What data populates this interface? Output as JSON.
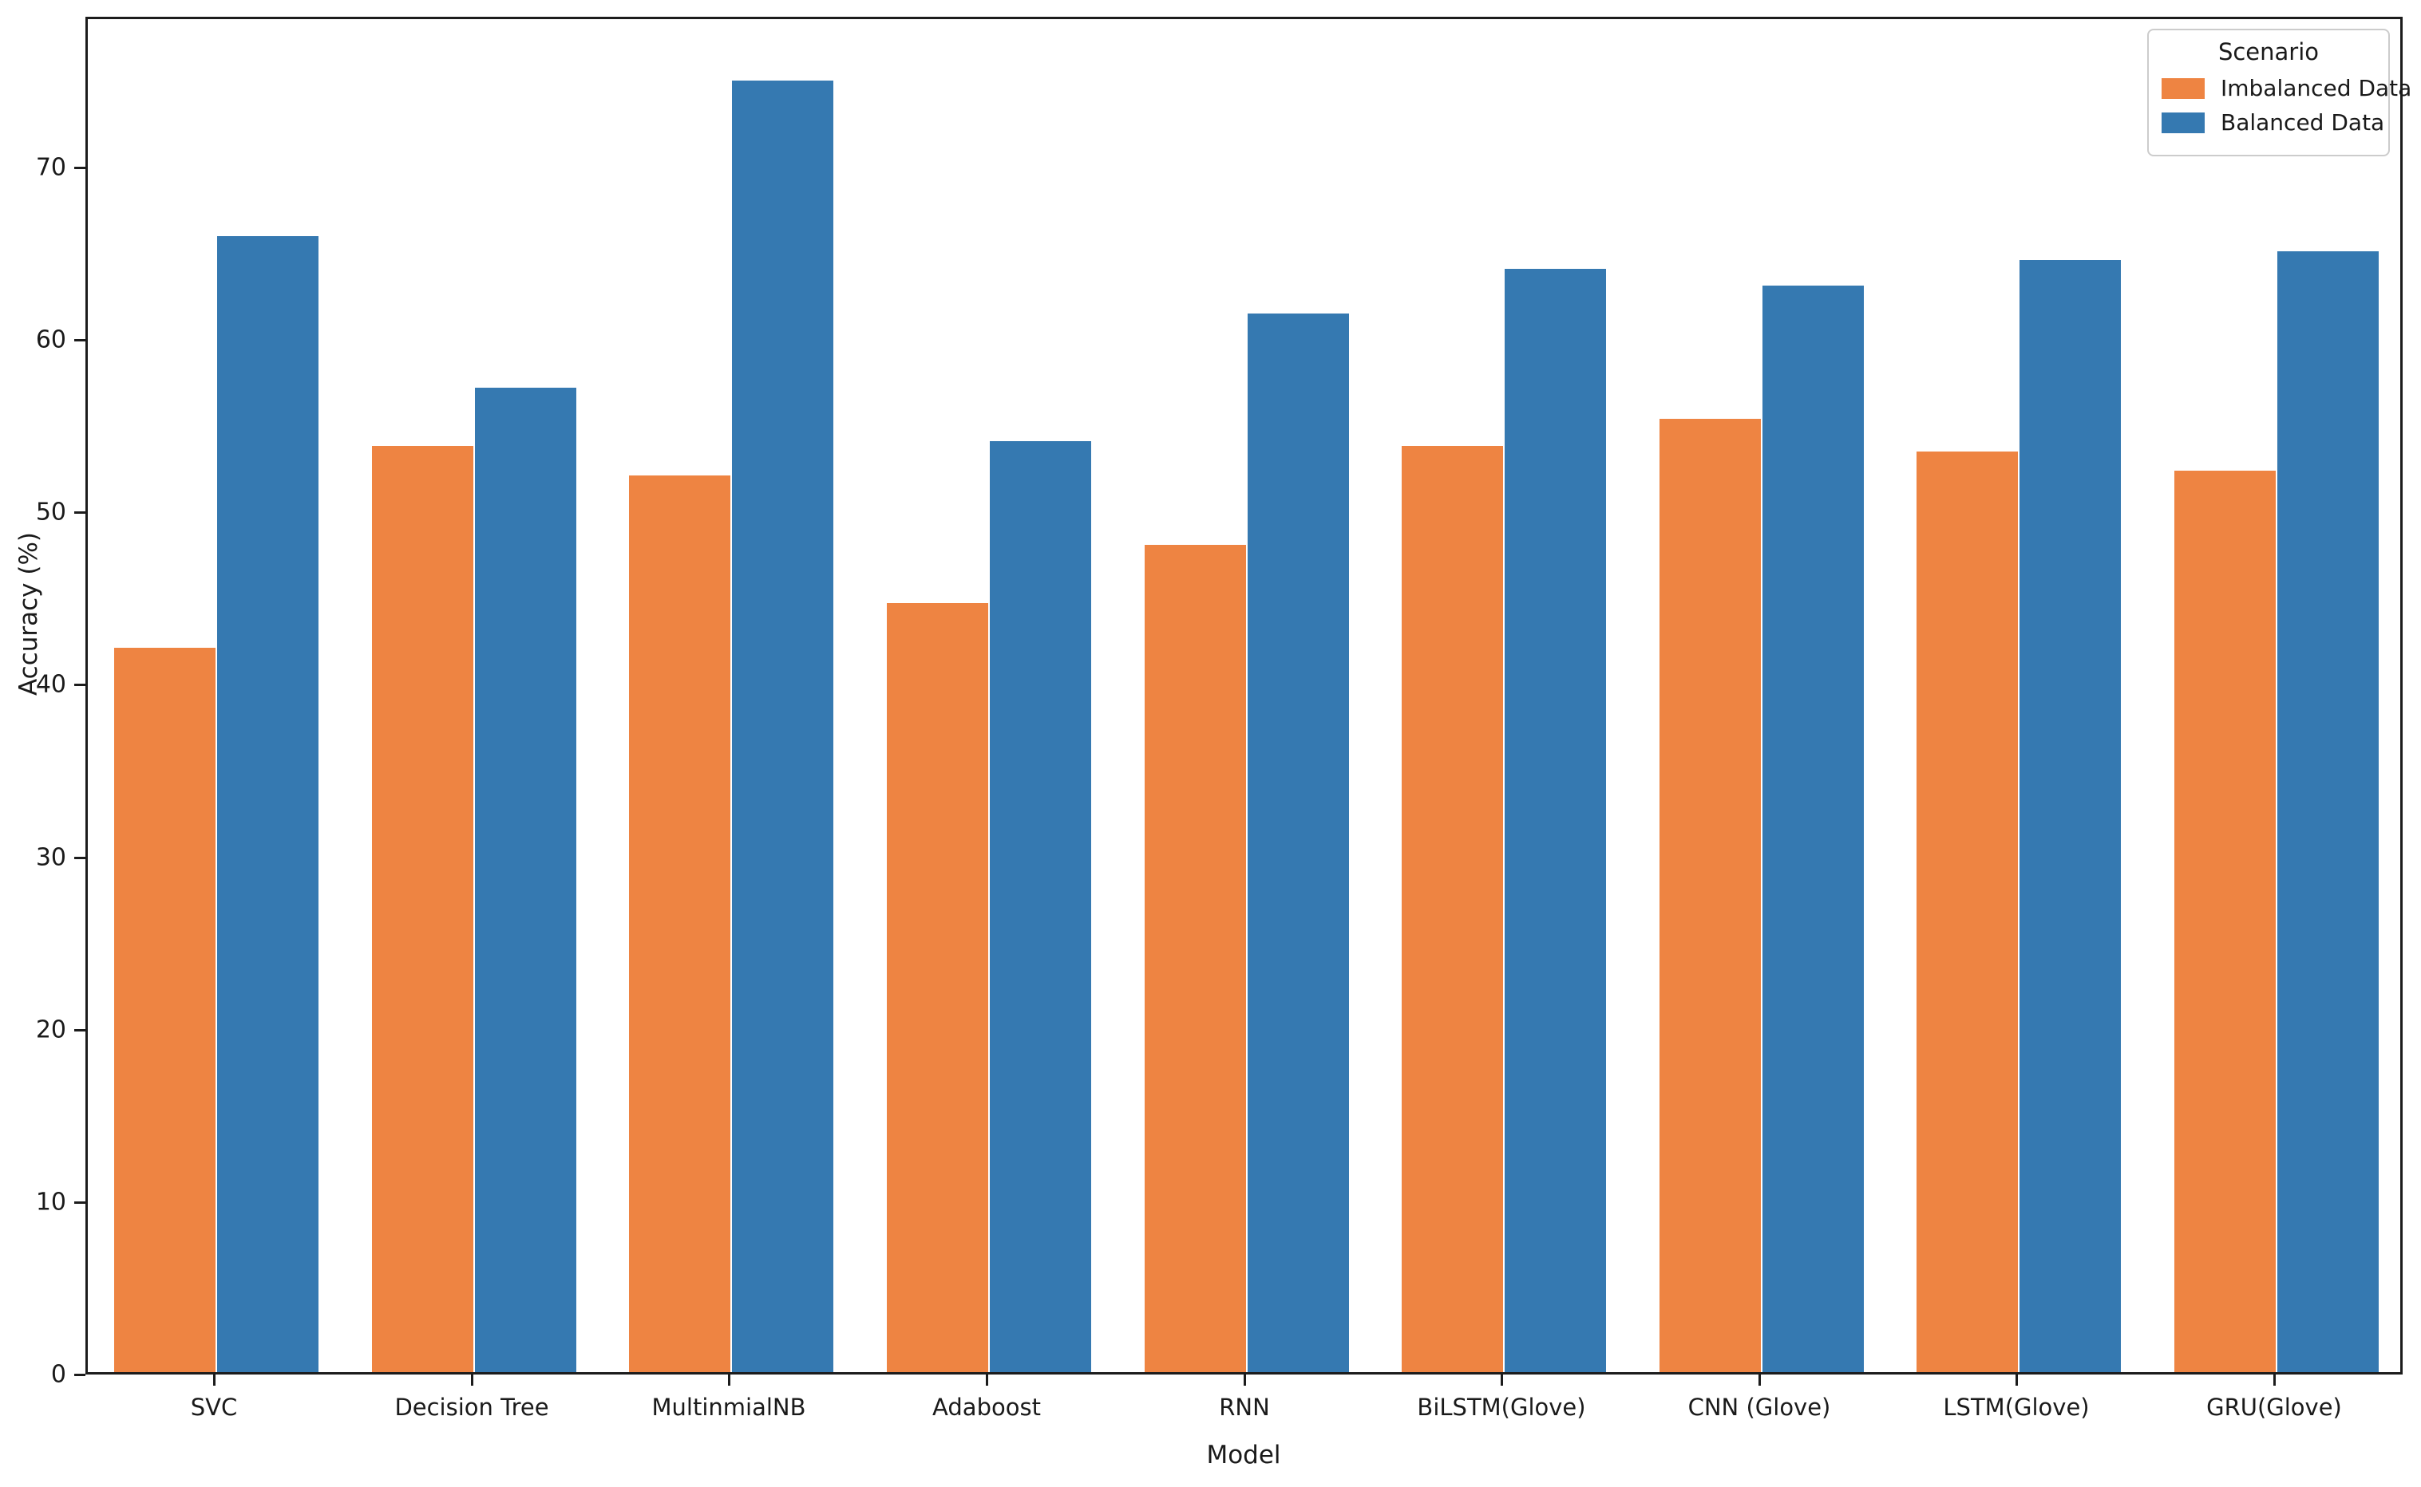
{
  "figure": {
    "background": "#ffffff",
    "spine_color": "#1c1c1c"
  },
  "axes": {
    "xlabel": "Model",
    "ylabel": "Accuracy (%)"
  },
  "legend": {
    "title": "Scenario",
    "entries": [
      {
        "label": "Imbalanced Data",
        "color": "#ee8442"
      },
      {
        "label": "Balanced Data",
        "color": "#3579b1"
      }
    ]
  },
  "chart_data": {
    "type": "bar",
    "title": "",
    "xlabel": "Model",
    "ylabel": "Accuracy (%)",
    "categories": [
      "SVC",
      "Decision Tree",
      "MultinmialNB",
      "Adaboost",
      "RNN",
      "BiLSTM(Glove)",
      "CNN (Glove)",
      "LSTM(Glove)",
      "GRU(Glove)"
    ],
    "series": [
      {
        "name": "Imbalanced Data",
        "color": "#ee8442",
        "values": [
          42.0,
          53.7,
          52.0,
          44.6,
          48.0,
          53.7,
          55.3,
          53.4,
          52.3
        ]
      },
      {
        "name": "Balanced Data",
        "color": "#3579b1",
        "values": [
          65.9,
          57.1,
          74.9,
          54.0,
          61.4,
          64.0,
          63.0,
          64.5,
          65.0
        ]
      }
    ],
    "ylim": [
      0,
      78.75
    ],
    "yticks": [
      0,
      10,
      20,
      30,
      40,
      50,
      60,
      70
    ],
    "grid": false,
    "legend_title": "Scenario",
    "legend_position": "upper right"
  }
}
